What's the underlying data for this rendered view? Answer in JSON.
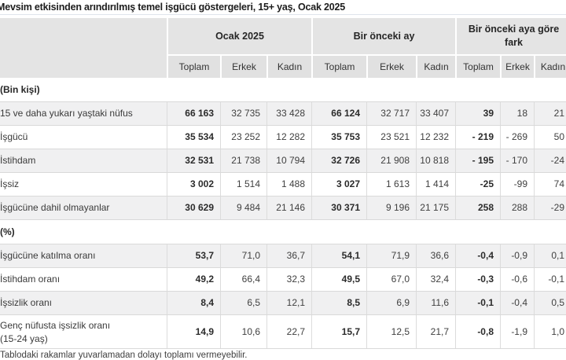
{
  "title": "Mevsim etkisinden arındırılmış temel işgücü göstergeleri, 15+ yaş, Ocak 2025",
  "table": {
    "column_groups": [
      {
        "label": "Ocak 2025"
      },
      {
        "label": "Bir önceki ay"
      },
      {
        "label": "Bir önceki aya göre fark"
      }
    ],
    "sub_headers": [
      "Toplam",
      "Erkek",
      "Kadın",
      "Toplam",
      "Erkek",
      "Kadın",
      "Toplam",
      "Erkek",
      "Kadın"
    ],
    "sections": [
      {
        "header": "(Bin kişi)",
        "rows": [
          {
            "label": "15 ve daha yukarı yaştaki nüfus",
            "values": [
              "66 163",
              "32 735",
              "33 428",
              "66 124",
              "32 717",
              "33 407",
              "39",
              "18",
              "21"
            ]
          },
          {
            "label": "İşgücü",
            "values": [
              "35 534",
              "23 252",
              "12 282",
              "35 753",
              "23 521",
              "12 232",
              "- 219",
              "- 269",
              "50"
            ]
          },
          {
            "label": "İstihdam",
            "values": [
              "32 531",
              "21 738",
              "10 794",
              "32 726",
              "21 908",
              "10 818",
              "- 195",
              "- 170",
              "-24"
            ]
          },
          {
            "label": "İşsiz",
            "values": [
              "3 002",
              "1 514",
              "1 488",
              "3 027",
              "1 613",
              "1 414",
              "-25",
              "-99",
              "74"
            ]
          },
          {
            "label": "İşgücüne dahil olmayanlar",
            "values": [
              "30 629",
              "9 484",
              "21 146",
              "30 371",
              "9 196",
              "21 175",
              "258",
              "288",
              "-29"
            ]
          }
        ]
      },
      {
        "header": "(%)",
        "rows": [
          {
            "label": "İşgücüne katılma oranı",
            "values": [
              "53,7",
              "71,0",
              "36,7",
              "54,1",
              "71,9",
              "36,6",
              "-0,4",
              "-0,9",
              "0,1"
            ]
          },
          {
            "label": "İstihdam oranı",
            "values": [
              "49,2",
              "66,4",
              "32,3",
              "49,5",
              "67,0",
              "32,4",
              "-0,3",
              "-0,6",
              "-0,1"
            ]
          },
          {
            "label": "İşsizlik oranı",
            "values": [
              "8,4",
              "6,5",
              "12,1",
              "8,5",
              "6,9",
              "11,6",
              "-0,1",
              "-0,4",
              "0,5"
            ]
          },
          {
            "label": "Genç nüfusta işsizlik oranı",
            "label2": "(15-24 yaş)",
            "values": [
              "14,9",
              "10,6",
              "22,7",
              "15,7",
              "12,5",
              "21,7",
              "-0,8",
              "-1,9",
              "1,0"
            ]
          }
        ]
      }
    ]
  },
  "footnote": "Tablodaki rakamlar yuvarlamadan dolayı toplamı vermeyebilir."
}
